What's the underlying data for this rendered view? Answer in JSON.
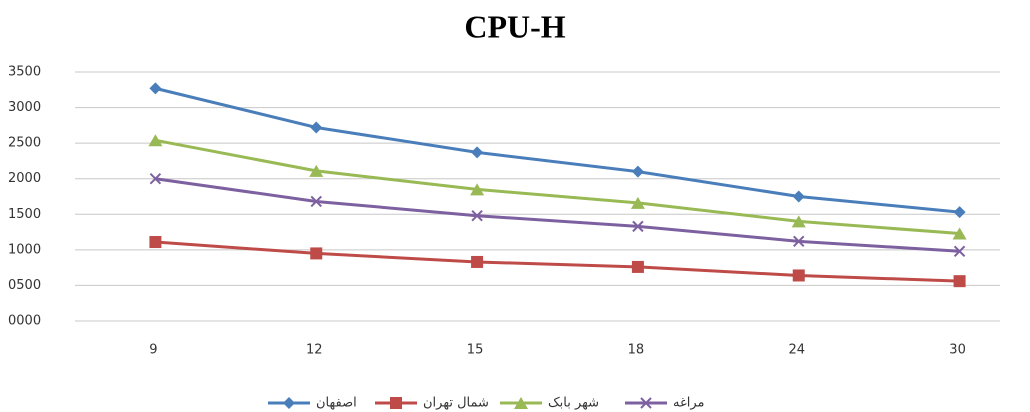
{
  "chart_data": {
    "type": "line",
    "title": "CPU-H",
    "categories": [
      "9",
      "12",
      "15",
      "18",
      "24",
      "30"
    ],
    "series": [
      {
        "name": "اصفهان",
        "color": "#4a7ebb",
        "marker": "diamond",
        "values": [
          3270,
          2720,
          2370,
          2100,
          1750,
          1530
        ]
      },
      {
        "name": "شمال تهران",
        "color": "#be4b48",
        "marker": "square",
        "values": [
          1110,
          950,
          830,
          760,
          640,
          560
        ]
      },
      {
        "name": "شهر بابک",
        "color": "#98b954",
        "marker": "triangle",
        "values": [
          2540,
          2110,
          1850,
          1660,
          1400,
          1230
        ]
      },
      {
        "name": "مراغه",
        "color": "#7d60a0",
        "marker": "x",
        "values": [
          2000,
          1680,
          1480,
          1330,
          1120,
          980
        ]
      }
    ],
    "ylim": [
      0,
      3500
    ],
    "yticks": [
      {
        "value": 0,
        "label": "0000"
      },
      {
        "value": 500,
        "label": "0500"
      },
      1000,
      1500,
      2000,
      2500,
      3000,
      3500
    ],
    "grid": true,
    "legend": "bottom"
  }
}
